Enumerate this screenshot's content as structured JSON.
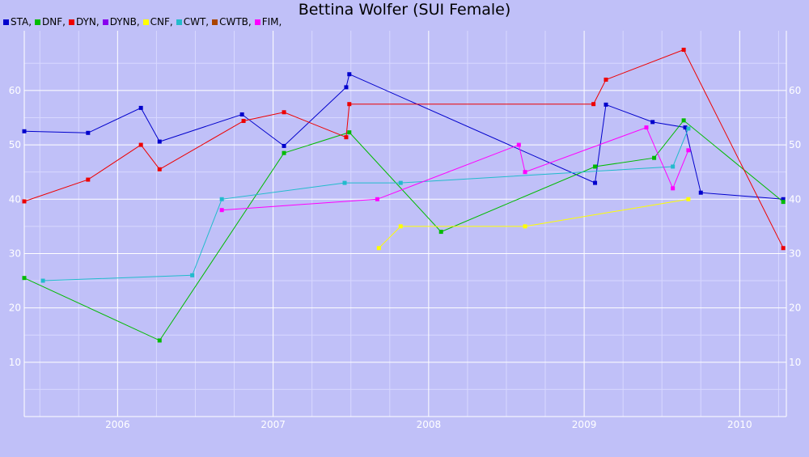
{
  "chart_data": {
    "type": "line",
    "title": "Bettina Wolfer (SUI Female)",
    "xlabel": "",
    "ylabel": "",
    "xlim": [
      2005.4,
      2010.3
    ],
    "ylim": [
      0,
      71
    ],
    "x_ticks": [
      2006,
      2007,
      2008,
      2009,
      2010
    ],
    "y_ticks": [
      10,
      20,
      30,
      40,
      50,
      60
    ],
    "grid": true,
    "legend_placement": "top-left",
    "series": [
      {
        "name": "STA,",
        "color": "#0000cc",
        "points": [
          [
            2005.4,
            52.5
          ],
          [
            2005.81,
            52.2
          ],
          [
            2006.15,
            56.8
          ],
          [
            2006.27,
            50.6
          ],
          [
            2006.8,
            55.6
          ],
          [
            2007.07,
            49.8
          ],
          [
            2007.47,
            60.6
          ],
          [
            2007.49,
            63
          ],
          [
            2009.07,
            43
          ],
          [
            2009.14,
            57.4
          ],
          [
            2009.44,
            54.2
          ],
          [
            2009.65,
            53.2
          ],
          [
            2009.75,
            41.2
          ],
          [
            2010.28,
            40
          ]
        ]
      },
      {
        "name": "DNF,",
        "color": "#00bb00",
        "points": [
          [
            2005.4,
            25.5
          ],
          [
            2006.27,
            14
          ],
          [
            2007.07,
            48.5
          ],
          [
            2007.49,
            52.3
          ],
          [
            2008.08,
            34
          ],
          [
            2009.07,
            46
          ],
          [
            2009.45,
            47.6
          ],
          [
            2009.64,
            54.5
          ],
          [
            2010.28,
            39.5
          ]
        ]
      },
      {
        "name": "DYN,",
        "color": "#ee0000",
        "points": [
          [
            2005.4,
            39.6
          ],
          [
            2005.81,
            43.6
          ],
          [
            2006.15,
            50
          ],
          [
            2006.27,
            45.5
          ],
          [
            2006.81,
            54.4
          ],
          [
            2007.07,
            56
          ],
          [
            2007.47,
            51.4
          ],
          [
            2007.49,
            57.5
          ],
          [
            2009.06,
            57.5
          ],
          [
            2009.14,
            62
          ],
          [
            2009.64,
            67.5
          ],
          [
            2010.28,
            31
          ]
        ]
      },
      {
        "name": "DYNB,",
        "color": "#8800ee",
        "points": []
      },
      {
        "name": "CNF,",
        "color": "#ffff00",
        "points": [
          [
            2007.68,
            31
          ],
          [
            2007.82,
            35
          ],
          [
            2008.62,
            35
          ],
          [
            2009.67,
            40
          ]
        ]
      },
      {
        "name": "CWT,",
        "color": "#22bbcc",
        "points": [
          [
            2005.52,
            25
          ],
          [
            2006.48,
            26
          ],
          [
            2006.67,
            40
          ],
          [
            2007.46,
            43
          ],
          [
            2007.82,
            43
          ],
          [
            2009.57,
            46
          ],
          [
            2009.67,
            53
          ]
        ]
      },
      {
        "name": "CWTB,",
        "color": "#aa4400",
        "points": []
      },
      {
        "name": "FIM,",
        "color": "#ff00ff",
        "points": [
          [
            2006.67,
            38
          ],
          [
            2007.67,
            40
          ],
          [
            2008.58,
            50
          ],
          [
            2008.62,
            45
          ],
          [
            2009.4,
            53.2
          ],
          [
            2009.57,
            42
          ],
          [
            2009.67,
            49
          ]
        ]
      }
    ]
  }
}
